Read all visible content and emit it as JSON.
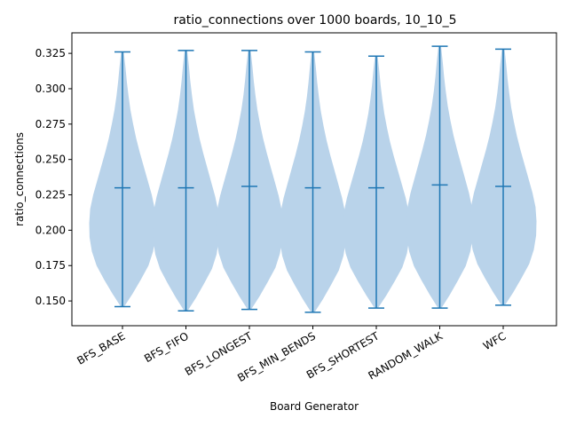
{
  "chart_data": {
    "type": "violin",
    "title": "ratio_connections over 1000 boards, 10_10_5",
    "xlabel": "Board Generator",
    "ylabel": "ratio_connections",
    "categories": [
      "BFS_BASE",
      "BFS_FIFO",
      "BFS_LONGEST",
      "BFS_MIN_BENDS",
      "BFS_SHORTEST",
      "RANDOM_WALK",
      "WFC"
    ],
    "min": [
      0.146,
      0.143,
      0.144,
      0.142,
      0.145,
      0.145,
      0.147
    ],
    "max": [
      0.326,
      0.327,
      0.327,
      0.326,
      0.323,
      0.33,
      0.328
    ],
    "mean": [
      0.23,
      0.23,
      0.231,
      0.23,
      0.23,
      0.232,
      0.231
    ],
    "density_levels": [
      0.146,
      0.155,
      0.165,
      0.175,
      0.185,
      0.195,
      0.205,
      0.215,
      0.225,
      0.235,
      0.245,
      0.255,
      0.265,
      0.275,
      0.285,
      0.295,
      0.305,
      0.315,
      0.326
    ],
    "density_profile": [
      0.05,
      0.3,
      0.55,
      0.78,
      0.92,
      0.99,
      1.0,
      0.97,
      0.88,
      0.76,
      0.64,
      0.52,
      0.41,
      0.32,
      0.24,
      0.18,
      0.13,
      0.09,
      0.04
    ],
    "yticks": [
      "0.150",
      "0.175",
      "0.200",
      "0.225",
      "0.250",
      "0.275",
      "0.300",
      "0.325"
    ],
    "ylim": [
      0.1325,
      0.3395
    ],
    "colors": {
      "violin_fill": "#b9d3ea",
      "lines": "#1f77b4"
    }
  }
}
